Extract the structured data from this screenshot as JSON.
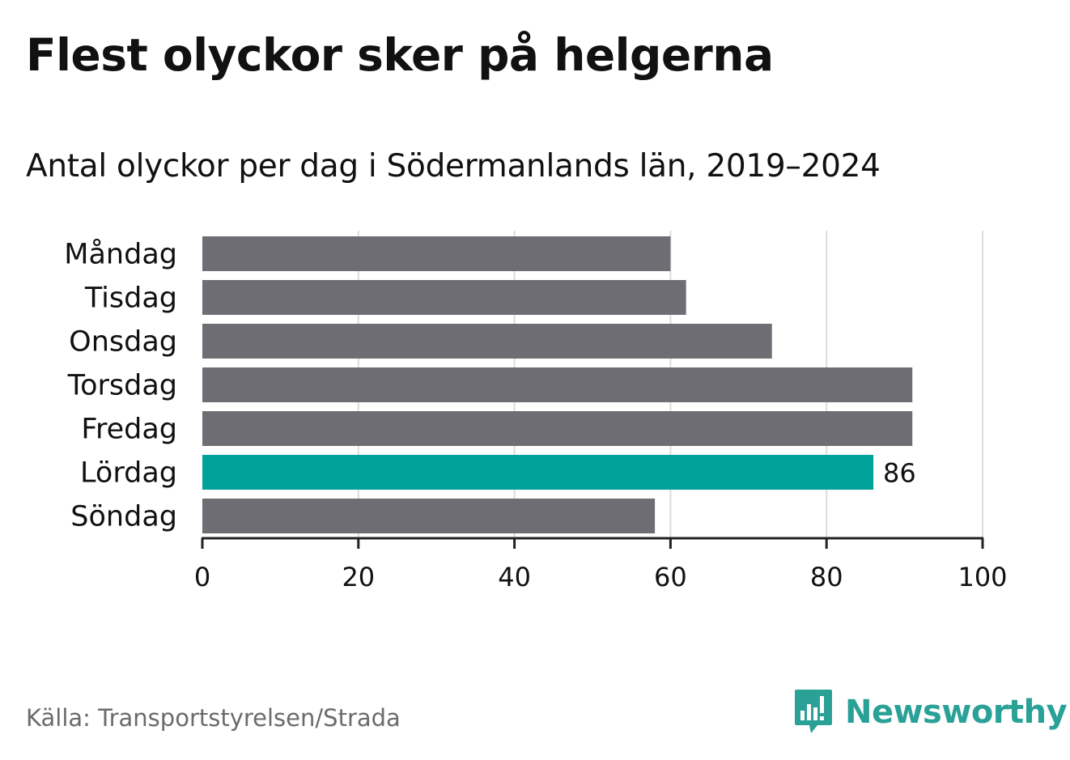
{
  "title": "Flest olyckor sker på helgerna",
  "subtitle": "Antal olyckor per dag i Södermanlands län, 2019–2024",
  "source": "Källa: Transportstyrelsen/Strada",
  "brand": "Newsworthy",
  "colors": {
    "bar": "#6e6d73",
    "highlight": "#00a29a",
    "grid": "#dcdcdc",
    "axis": "#222222",
    "brand": "#2aa197"
  },
  "chart_data": {
    "type": "bar",
    "orientation": "horizontal",
    "categories": [
      "Måndag",
      "Tisdag",
      "Onsdag",
      "Torsdag",
      "Fredag",
      "Lördag",
      "Söndag"
    ],
    "values": [
      60,
      62,
      73,
      91,
      91,
      86,
      58
    ],
    "highlight_index": 5,
    "data_labels": [
      {
        "index": 5,
        "text": "86"
      }
    ],
    "xlim": [
      0,
      100
    ],
    "xticks": [
      0,
      20,
      40,
      60,
      80,
      100
    ],
    "grid": true,
    "xlabel": "",
    "ylabel": ""
  }
}
